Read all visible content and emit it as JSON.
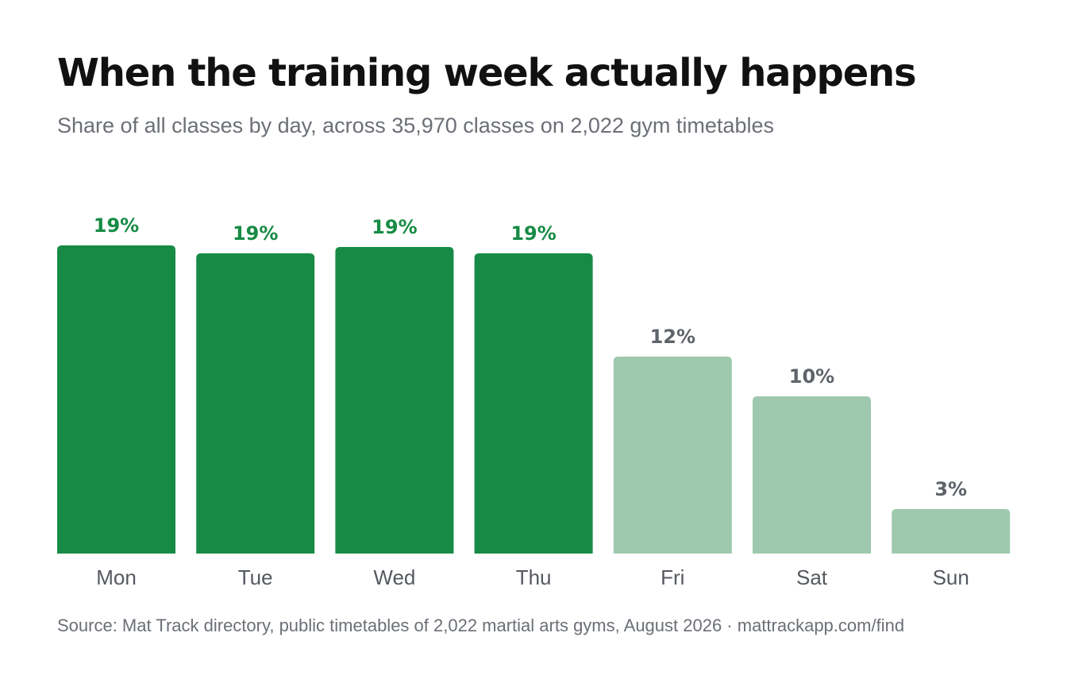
{
  "chart_data": {
    "type": "bar",
    "title": "When the training week actually happens",
    "subtitle": "Share of all classes by day, across 35,970 classes on 2,022 gym timetables",
    "xlabel": "",
    "ylabel": "",
    "categories": [
      "Mon",
      "Tue",
      "Wed",
      "Thu",
      "Fri",
      "Sat",
      "Sun"
    ],
    "values": [
      19.4,
      18.9,
      19.3,
      18.9,
      12.4,
      9.9,
      2.8
    ],
    "data_labels": [
      "19%",
      "19%",
      "19%",
      "19%",
      "12%",
      "10%",
      "3%"
    ],
    "highlighted": [
      true,
      true,
      true,
      true,
      false,
      false,
      false
    ],
    "ylim": [
      0,
      20
    ],
    "grid": false,
    "legend": "none",
    "colors": {
      "highlight_bar": "#178b45",
      "muted_bar": "#9fc9ae",
      "highlight_label": "#178b45",
      "muted_label": "#5f636a",
      "tick_label": "#55595f"
    }
  },
  "source": "Source: Mat Track directory, public timetables of 2,022 martial arts gyms, August 2026 · mattrackapp.com/find"
}
